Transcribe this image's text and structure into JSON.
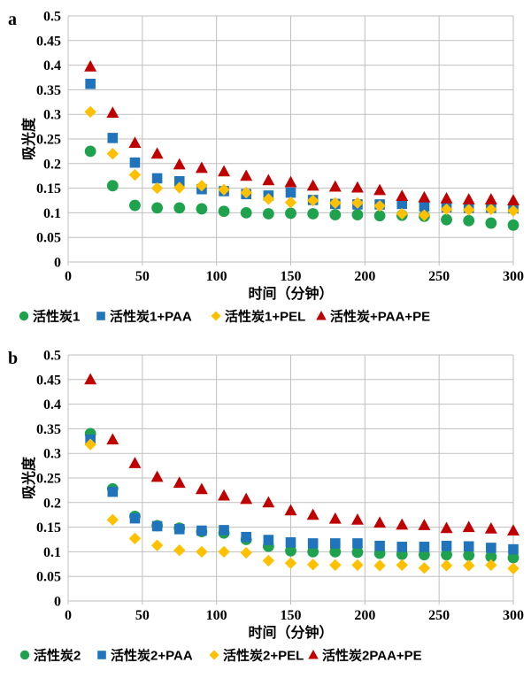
{
  "figure": {
    "background": "#FFFFFF",
    "grid_color": "#BFBFBF",
    "text_color": "#000000"
  },
  "chart_data": [
    {
      "panel_label": "a",
      "type": "scatter",
      "title": "",
      "xlabel": "时间（分钟）",
      "ylabel": "吸光度",
      "xlim": [
        0,
        300
      ],
      "ylim": [
        0,
        0.5
      ],
      "x_ticks": [
        0,
        50,
        100,
        150,
        200,
        250,
        300
      ],
      "y_ticks": [
        0,
        0.05,
        0.1,
        0.15,
        0.2,
        0.25,
        0.3,
        0.35,
        0.4,
        0.45,
        0.5
      ],
      "grid": true,
      "legend_position": "bottom",
      "x": [
        15,
        30,
        45,
        60,
        75,
        90,
        105,
        120,
        135,
        150,
        165,
        180,
        195,
        210,
        225,
        240,
        255,
        270,
        285,
        300
      ],
      "series": [
        {
          "name": "活性炭1",
          "marker": "circle",
          "color": "#1FA24D",
          "values": [
            0.225,
            0.155,
            0.115,
            0.11,
            0.11,
            0.108,
            0.103,
            0.1,
            0.098,
            0.099,
            0.098,
            0.096,
            0.096,
            0.094,
            0.095,
            0.093,
            0.086,
            0.084,
            0.079,
            0.075
          ]
        },
        {
          "name": "活性炭1+PAA",
          "marker": "square",
          "color": "#1F74BC",
          "values": [
            0.362,
            0.252,
            0.202,
            0.17,
            0.164,
            0.148,
            0.144,
            0.138,
            0.135,
            0.141,
            0.126,
            0.118,
            0.117,
            0.117,
            0.118,
            0.113,
            0.111,
            0.11,
            0.11,
            0.109
          ]
        },
        {
          "name": "活性炭1+PEL",
          "marker": "diamond",
          "color": "#FFC000",
          "values": [
            0.305,
            0.22,
            0.177,
            0.15,
            0.151,
            0.155,
            0.147,
            0.141,
            0.128,
            0.121,
            0.125,
            0.12,
            0.12,
            0.114,
            0.098,
            0.095,
            0.107,
            0.106,
            0.107,
            0.104
          ]
        },
        {
          "name": "活性炭+PAA+PE",
          "marker": "triangle",
          "color": "#C00000",
          "values": [
            0.397,
            0.303,
            0.242,
            0.22,
            0.198,
            0.191,
            0.184,
            0.175,
            0.166,
            0.162,
            0.155,
            0.153,
            0.151,
            0.146,
            0.134,
            0.131,
            0.129,
            0.127,
            0.127,
            0.125
          ]
        }
      ]
    },
    {
      "panel_label": "b",
      "type": "scatter",
      "title": "",
      "xlabel": "时间（分钟）",
      "ylabel": "吸光度",
      "xlim": [
        0,
        300
      ],
      "ylim": [
        0,
        0.5
      ],
      "x_ticks": [
        0,
        50,
        100,
        150,
        200,
        250,
        300
      ],
      "y_ticks": [
        0,
        0.05,
        0.1,
        0.15,
        0.2,
        0.25,
        0.3,
        0.35,
        0.4,
        0.45,
        0.5
      ],
      "grid": true,
      "legend_position": "bottom",
      "x": [
        15,
        30,
        45,
        60,
        75,
        90,
        105,
        120,
        135,
        150,
        165,
        180,
        195,
        210,
        225,
        240,
        255,
        270,
        285,
        300
      ],
      "series": [
        {
          "name": "活性炭2",
          "marker": "circle",
          "color": "#1FA24D",
          "values": [
            0.34,
            0.228,
            0.172,
            0.153,
            0.148,
            0.141,
            0.138,
            0.125,
            0.111,
            0.102,
            0.1,
            0.1,
            0.099,
            0.097,
            0.095,
            0.094,
            0.094,
            0.093,
            0.09,
            0.088
          ]
        },
        {
          "name": "活性炭2+PAA",
          "marker": "square",
          "color": "#1F74BC",
          "values": [
            0.328,
            0.222,
            0.168,
            0.152,
            0.146,
            0.143,
            0.144,
            0.13,
            0.124,
            0.119,
            0.117,
            0.117,
            0.117,
            0.112,
            0.11,
            0.11,
            0.112,
            0.111,
            0.108,
            0.105
          ]
        },
        {
          "name": "活性炭2+PEL",
          "marker": "diamond",
          "color": "#FFC000",
          "values": [
            0.318,
            0.165,
            0.127,
            0.113,
            0.103,
            0.1,
            0.1,
            0.098,
            0.082,
            0.077,
            0.074,
            0.073,
            0.073,
            0.072,
            0.073,
            0.067,
            0.072,
            0.072,
            0.073,
            0.066
          ]
        },
        {
          "name": "活性炭2PAA+PE",
          "marker": "triangle",
          "color": "#C00000",
          "values": [
            0.45,
            0.328,
            0.28,
            0.252,
            0.24,
            0.227,
            0.214,
            0.207,
            0.2,
            0.184,
            0.175,
            0.167,
            0.165,
            0.159,
            0.155,
            0.154,
            0.148,
            0.15,
            0.147,
            0.143
          ]
        }
      ]
    }
  ]
}
